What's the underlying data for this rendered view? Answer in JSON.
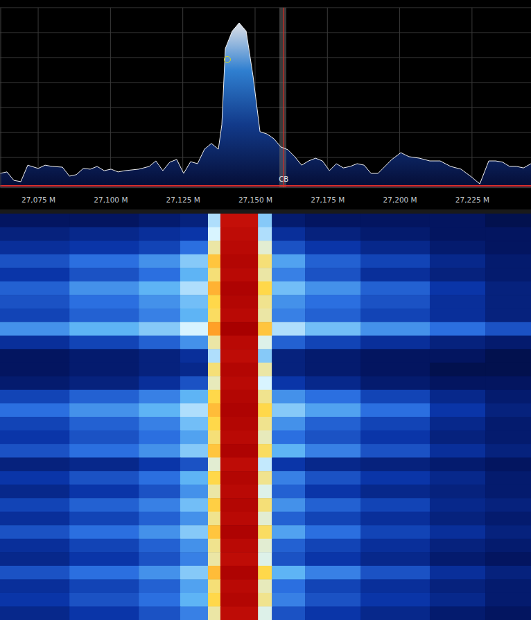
{
  "chart_data": {
    "type": "spectrum",
    "color": "#2f7fd0",
    "grid": true,
    "tick_labels": "x",
    "xlim": [
      27.0618,
      27.2454
    ],
    "ylim": [
      -102,
      -30
    ],
    "xticks": [
      {
        "value": 27.075,
        "label": "27,075 M"
      },
      {
        "value": 27.1,
        "label": "27,100 M"
      },
      {
        "value": 27.125,
        "label": "27,125 M"
      },
      {
        "value": 27.15,
        "label": "27,150 M"
      },
      {
        "value": 27.175,
        "label": "27,175 M"
      },
      {
        "value": 27.2,
        "label": "27,200 M"
      },
      {
        "value": 27.225,
        "label": "27,225 M"
      }
    ],
    "yticks": [
      -100,
      -90,
      -80,
      -70,
      -60,
      -50,
      -40,
      -30
    ],
    "x": [
      27.0618,
      27.0642,
      27.0666,
      27.069,
      27.0714,
      27.075,
      27.0774,
      27.0798,
      27.0834,
      27.0858,
      27.0882,
      27.0906,
      27.093,
      27.0954,
      27.0978,
      27.1002,
      27.1026,
      27.105,
      27.1098,
      27.1134,
      27.1157,
      27.1181,
      27.1205,
      27.1229,
      27.1253,
      27.1277,
      27.1301,
      27.1325,
      27.1349,
      27.1373,
      27.1385,
      27.1397,
      27.1421,
      27.1445,
      27.1469,
      27.1493,
      27.1517,
      27.1541,
      27.1565,
      27.1589,
      27.1613,
      27.1637,
      27.1661,
      27.1685,
      27.1709,
      27.1733,
      27.1757,
      27.1781,
      27.1805,
      27.1829,
      27.1853,
      27.1877,
      27.1901,
      27.1925,
      27.1949,
      27.1973,
      27.2004,
      27.2032,
      27.2068,
      27.2104,
      27.214,
      27.2176,
      27.2212,
      27.2248,
      27.2277,
      27.2308,
      27.2332,
      27.2356,
      27.238,
      27.2404,
      27.2428,
      27.2454
    ],
    "values": [
      -96.4,
      -95.8,
      -99.2,
      -99.7,
      -93.1,
      -94.4,
      -93.1,
      -93.6,
      -93.9,
      -97.5,
      -96.9,
      -94.4,
      -94.7,
      -93.6,
      -95.3,
      -94.7,
      -95.8,
      -95.3,
      -94.7,
      -93.6,
      -91.4,
      -95.3,
      -91.9,
      -90.8,
      -96.4,
      -91.7,
      -92.5,
      -86.7,
      -84.4,
      -86.7,
      -76.9,
      -46.4,
      -39.4,
      -36.1,
      -39.4,
      -57.5,
      -79.7,
      -80.6,
      -82.5,
      -85.8,
      -86.9,
      -89.7,
      -93.1,
      -91.4,
      -90.3,
      -91.4,
      -95.3,
      -92.5,
      -94.2,
      -93.6,
      -92.5,
      -93.1,
      -96.4,
      -96.4,
      -93.6,
      -90.8,
      -88.1,
      -89.7,
      -90.3,
      -91.4,
      -91.4,
      -93.6,
      -94.7,
      -97.8,
      -100.6,
      -91.4,
      -91.4,
      -91.9,
      -93.6,
      -93.6,
      -94.2,
      -92.5
    ],
    "threshold": -101.4,
    "cursor": {
      "x": 27.1404,
      "y": -50.8
    },
    "band": {
      "label": "CB",
      "start": 27.1584,
      "end": 27.1608,
      "center": 27.1599
    },
    "waterfall": {
      "zlim": [
        -100,
        -40
      ],
      "x_edges": [
        27.0618,
        27.0858,
        27.1098,
        27.1241,
        27.1337,
        27.138,
        27.151,
        27.1558,
        27.1673,
        27.1865,
        27.2104,
        27.2296,
        27.2454
      ],
      "values": [
        [
          -97,
          -97,
          -96,
          -95,
          -80,
          -45,
          -82,
          -96,
          -97,
          -97,
          -97,
          -98
        ],
        [
          -95,
          -94,
          -93,
          -92,
          -78,
          -44,
          -80,
          -93,
          -95,
          -96,
          -97,
          -97
        ],
        [
          -93,
          -92,
          -91,
          -88,
          -74,
          -43,
          -76,
          -90,
          -92,
          -94,
          -96,
          -97
        ],
        [
          -90,
          -88,
          -86,
          -82,
          -68,
          -42,
          -72,
          -85,
          -89,
          -91,
          -94,
          -96
        ],
        [
          -92,
          -90,
          -88,
          -84,
          -72,
          -43,
          -74,
          -87,
          -90,
          -93,
          -95,
          -96
        ],
        [
          -89,
          -86,
          -84,
          -80,
          -66,
          -41,
          -70,
          -83,
          -86,
          -89,
          -92,
          -95
        ],
        [
          -90,
          -88,
          -86,
          -83,
          -70,
          -42,
          -73,
          -86,
          -88,
          -90,
          -93,
          -95
        ],
        [
          -91,
          -89,
          -87,
          -84,
          -71,
          -43,
          -74,
          -87,
          -89,
          -91,
          -93,
          -95
        ],
        [
          -86,
          -84,
          -82,
          -78,
          -64,
          -40,
          -68,
          -80,
          -83,
          -86,
          -88,
          -90
        ],
        [
          -93,
          -91,
          -89,
          -86,
          -74,
          -43,
          -77,
          -89,
          -91,
          -93,
          -95,
          -96
        ],
        [
          -97,
          -96,
          -95,
          -93,
          -80,
          -44,
          -82,
          -95,
          -96,
          -97,
          -97,
          -98
        ],
        [
          -97,
          -96,
          -95,
          -94,
          -72,
          -42,
          -74,
          -95,
          -96,
          -97,
          -98,
          -98
        ],
        [
          -96,
          -95,
          -93,
          -90,
          -75,
          -43,
          -78,
          -92,
          -94,
          -96,
          -97,
          -97
        ],
        [
          -91,
          -89,
          -87,
          -84,
          -70,
          -42,
          -73,
          -86,
          -88,
          -91,
          -94,
          -96
        ],
        [
          -88,
          -86,
          -84,
          -80,
          -67,
          -41,
          -70,
          -82,
          -85,
          -88,
          -92,
          -95
        ],
        [
          -91,
          -89,
          -87,
          -83,
          -70,
          -42,
          -73,
          -86,
          -89,
          -91,
          -94,
          -96
        ],
        [
          -92,
          -90,
          -88,
          -85,
          -72,
          -43,
          -75,
          -88,
          -90,
          -92,
          -95,
          -96
        ],
        [
          -90,
          -88,
          -86,
          -82,
          -68,
          -41,
          -71,
          -84,
          -87,
          -90,
          -93,
          -95
        ],
        [
          -95,
          -94,
          -92,
          -90,
          -76,
          -44,
          -79,
          -92,
          -94,
          -95,
          -96,
          -97
        ],
        [
          -92,
          -90,
          -88,
          -84,
          -70,
          -42,
          -73,
          -87,
          -90,
          -92,
          -94,
          -96
        ],
        [
          -94,
          -92,
          -90,
          -86,
          -74,
          -43,
          -77,
          -89,
          -92,
          -94,
          -95,
          -96
        ],
        [
          -91,
          -89,
          -87,
          -83,
          -69,
          -42,
          -72,
          -86,
          -89,
          -91,
          -94,
          -95
        ],
        [
          -93,
          -91,
          -89,
          -86,
          -73,
          -43,
          -76,
          -89,
          -91,
          -93,
          -95,
          -96
        ],
        [
          -90,
          -88,
          -86,
          -82,
          -68,
          -41,
          -71,
          -85,
          -88,
          -91,
          -93,
          -95
        ],
        [
          -93,
          -91,
          -89,
          -86,
          -73,
          -43,
          -76,
          -89,
          -91,
          -93,
          -95,
          -96
        ],
        [
          -94,
          -92,
          -90,
          -87,
          -74,
          -44,
          -77,
          -90,
          -92,
          -94,
          -96,
          -97
        ],
        [
          -90,
          -88,
          -86,
          -82,
          -67,
          -41,
          -70,
          -84,
          -87,
          -90,
          -93,
          -95
        ],
        [
          -93,
          -91,
          -89,
          -85,
          -72,
          -43,
          -75,
          -88,
          -91,
          -93,
          -95,
          -96
        ],
        [
          -92,
          -90,
          -88,
          -84,
          -70,
          -42,
          -73,
          -87,
          -90,
          -92,
          -94,
          -96
        ],
        [
          -94,
          -92,
          -90,
          -87,
          -74,
          -44,
          -77,
          -90,
          -92,
          -94,
          -96,
          -97
        ]
      ]
    }
  }
}
